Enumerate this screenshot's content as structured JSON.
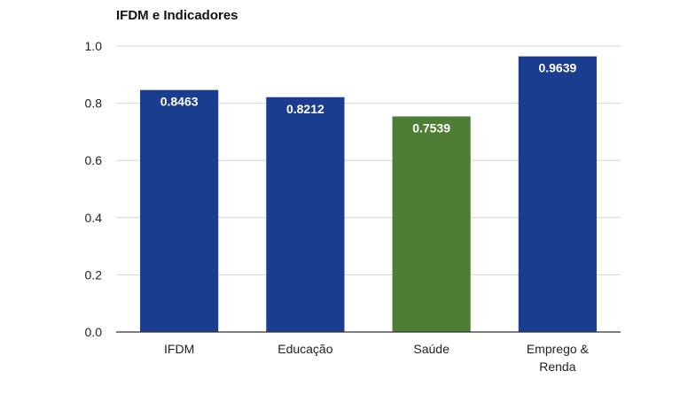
{
  "chart_data": {
    "type": "bar",
    "title": "IFDM e Indicadores",
    "xlabel": "",
    "ylabel": "",
    "ylim": [
      0,
      1.0
    ],
    "yticks": [
      "0.0",
      "0.2",
      "0.4",
      "0.6",
      "0.8",
      "1.0"
    ],
    "ytick_values": [
      0,
      0.2,
      0.4,
      0.6,
      0.8,
      1.0
    ],
    "grid": true,
    "categories": [
      [
        "IFDM"
      ],
      [
        "Educação"
      ],
      [
        "Saúde"
      ],
      [
        "Emprego &",
        "Renda"
      ]
    ],
    "category_names": [
      "IFDM",
      "Educação",
      "Saúde",
      "Emprego & Renda"
    ],
    "values": [
      0.8463,
      0.8212,
      0.7539,
      0.9639
    ],
    "data_labels": [
      "0.8463",
      "0.8212",
      "0.7539",
      "0.9639"
    ],
    "colors": [
      "#1a3d8f",
      "#1a3d8f",
      "#4e7d35",
      "#1a3d8f"
    ]
  }
}
